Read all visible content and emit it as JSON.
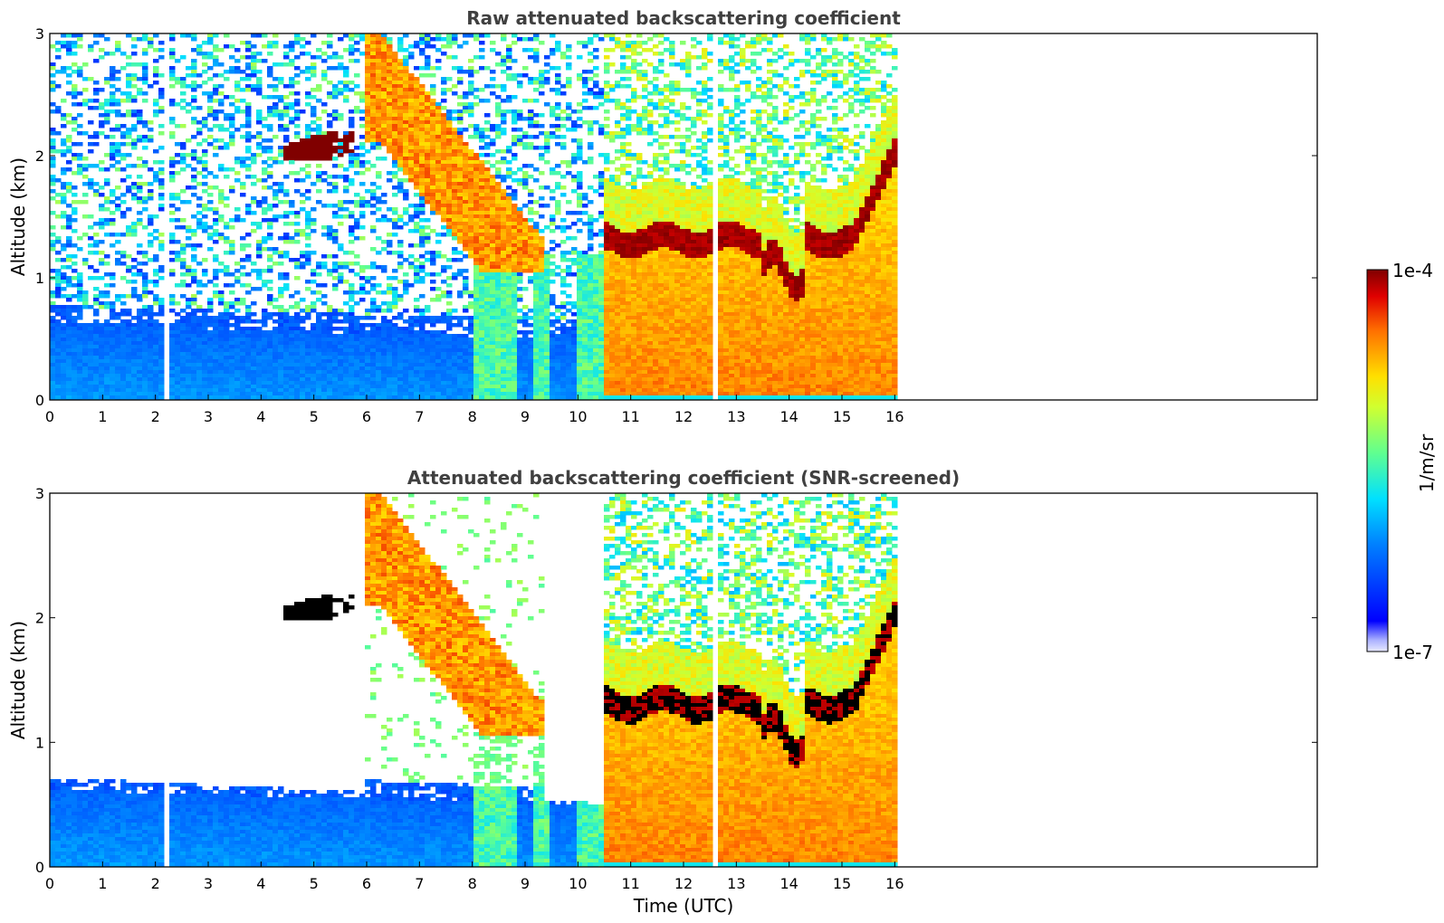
{
  "chart_data": [
    {
      "type": "heatmap",
      "title": "Raw attenuated backscattering coefficient",
      "xlabel": "",
      "ylabel": "Altitude (km)",
      "xlim": [
        0,
        24
      ],
      "ylim": [
        0,
        3
      ],
      "x_ticks": [
        "0",
        "1",
        "2",
        "3",
        "4",
        "5",
        "6",
        "7",
        "8",
        "9",
        "10",
        "11",
        "12",
        "13",
        "14",
        "15",
        "16"
      ],
      "y_ticks": [
        "0",
        "1",
        "2",
        "3"
      ],
      "data_extent_x": [
        0,
        16
      ],
      "colormap": "jet",
      "features": [
        {
          "type": "boundary_layer",
          "x": [
            0,
            10.5
          ],
          "y": [
            0,
            0.6
          ],
          "level": "low"
        },
        {
          "type": "aerosol_plume",
          "x": [
            4.5,
            5.8
          ],
          "y": [
            1.95,
            2.2
          ],
          "level": "saturated"
        },
        {
          "type": "descending_layer",
          "x": [
            6,
            9.2
          ],
          "y": [
            1.1,
            3
          ],
          "level": "medium-high"
        },
        {
          "type": "cloud_top",
          "x": [
            10.5,
            16
          ],
          "y": [
            1.2,
            2.0
          ],
          "level": "saturated"
        },
        {
          "type": "dense_layer",
          "x": [
            10.5,
            16
          ],
          "y": [
            0,
            1.3
          ],
          "level": "high"
        }
      ],
      "grid": false
    },
    {
      "type": "heatmap",
      "title": "Attenuated backscattering coefficient (SNR-screened)",
      "xlabel": "Time (UTC)",
      "ylabel": "Altitude (km)",
      "xlim": [
        0,
        24
      ],
      "ylim": [
        0,
        3
      ],
      "x_ticks": [
        "0",
        "1",
        "2",
        "3",
        "4",
        "5",
        "6",
        "7",
        "8",
        "9",
        "10",
        "11",
        "12",
        "13",
        "14",
        "15",
        "16"
      ],
      "y_ticks": [
        "0",
        "1",
        "2",
        "3"
      ],
      "data_extent_x": [
        0,
        16
      ],
      "colormap": "jet",
      "grid": false
    }
  ],
  "colorbar": {
    "label": "1/m/sr",
    "max_label": "1e-4",
    "min_label": "1e-7",
    "scale": "log",
    "colormap": "jet"
  }
}
